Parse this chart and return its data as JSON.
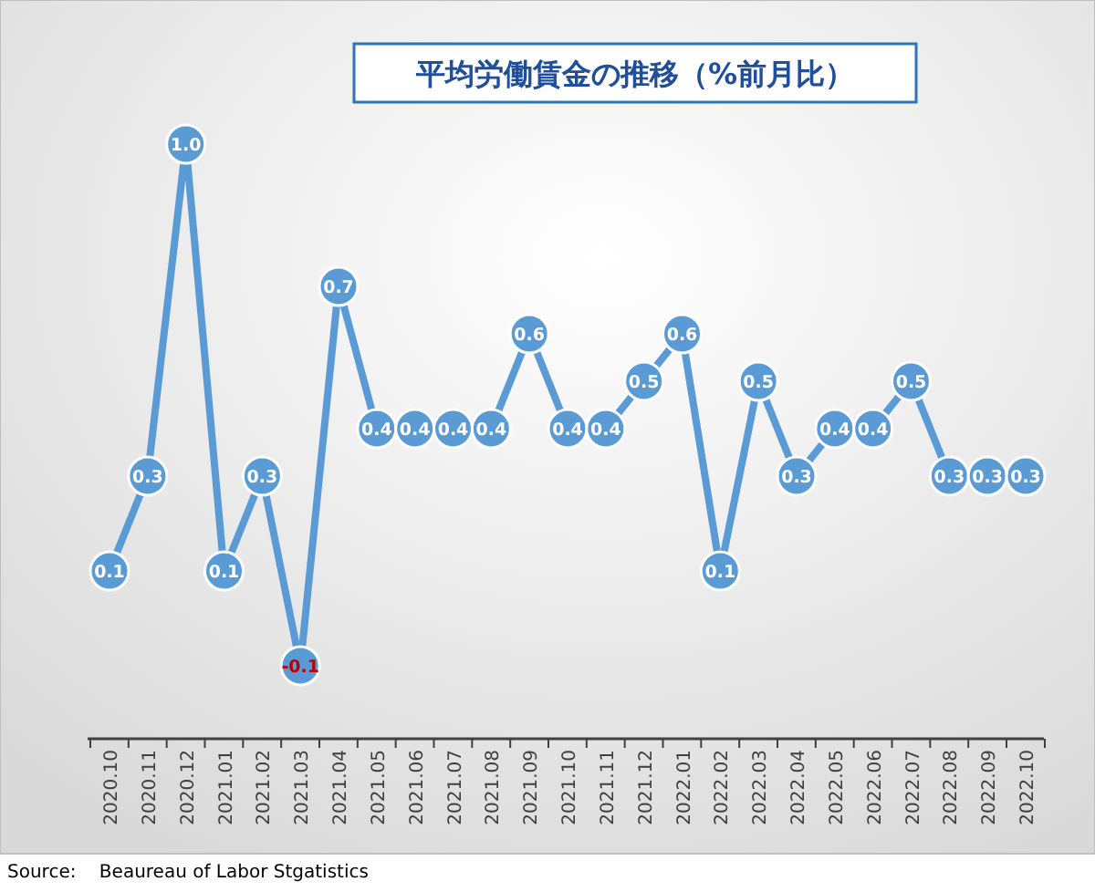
{
  "chart_data": {
    "type": "line",
    "title": "平均労働賃金の推移（%前月比）",
    "categories": [
      "2020.10",
      "2020.11",
      "2020.12",
      "2021.01",
      "2021.02",
      "2021.03",
      "2021.04",
      "2021.05",
      "2021.06",
      "2021.07",
      "2021.08",
      "2021.09",
      "2021.10",
      "2021.11",
      "2021.12",
      "2022.01",
      "2022.02",
      "2022.03",
      "2022.04",
      "2022.05",
      "2022.06",
      "2022.07",
      "2022.08",
      "2022.09",
      "2022.10"
    ],
    "series": [
      {
        "color": "#5b9bd5",
        "values": [
          0.1,
          0.3,
          1.0,
          0.1,
          0.3,
          -0.1,
          0.7,
          0.4,
          0.4,
          0.4,
          0.4,
          0.6,
          0.4,
          0.4,
          0.5,
          0.6,
          0.1,
          0.5,
          0.3,
          0.4,
          0.4,
          0.5,
          0.3,
          0.3,
          0.3
        ],
        "value_labels": [
          "0.1",
          "0.3",
          "1.0",
          "0.1",
          "0.3",
          "-0.1",
          "0.7",
          "0.4",
          "0.4",
          "0.4",
          "0.4",
          "0.6",
          "0.4",
          "0.4",
          "0.5",
          "0.6",
          "0.1",
          "0.5",
          "0.3",
          "0.4",
          "0.4",
          "0.5",
          "0.3",
          "0.3",
          "0.3"
        ]
      }
    ],
    "marker": "circle",
    "line_style": "solid",
    "tick_labels": "x",
    "annotations": [
      "Source:    Beaureau of Labor Stgatistics"
    ]
  }
}
